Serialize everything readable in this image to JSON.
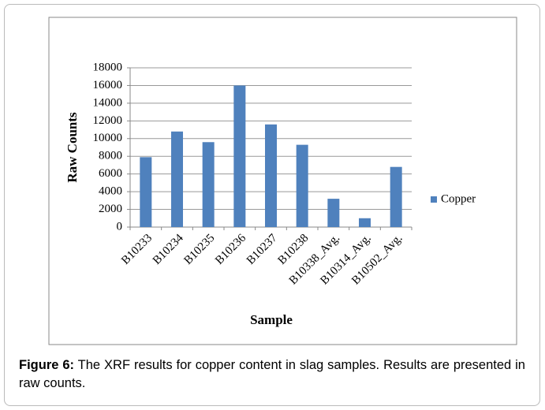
{
  "chart_data": {
    "type": "bar",
    "x_label": "Sample",
    "y_label": "Raw Counts",
    "categories": [
      "B10233",
      "B10234",
      "B10235",
      "B10236",
      "B10237",
      "B10238",
      "B10338_Avg.",
      "B10314_Avg.",
      "B10502_Avg."
    ],
    "series": [
      {
        "name": "Copper",
        "color": "#4f81bd",
        "values": [
          7900,
          10800,
          9600,
          16000,
          11600,
          9300,
          3200,
          1000,
          6800
        ]
      }
    ],
    "ylim": [
      0,
      18000
    ],
    "yticks": [
      0,
      2000,
      4000,
      6000,
      8000,
      10000,
      12000,
      14000,
      16000,
      18000
    ],
    "grid": true,
    "legend": "right"
  },
  "caption": {
    "label": "Figure 6:",
    "text": "The XRF results for copper content in slag samples. Results are presented in raw counts."
  }
}
